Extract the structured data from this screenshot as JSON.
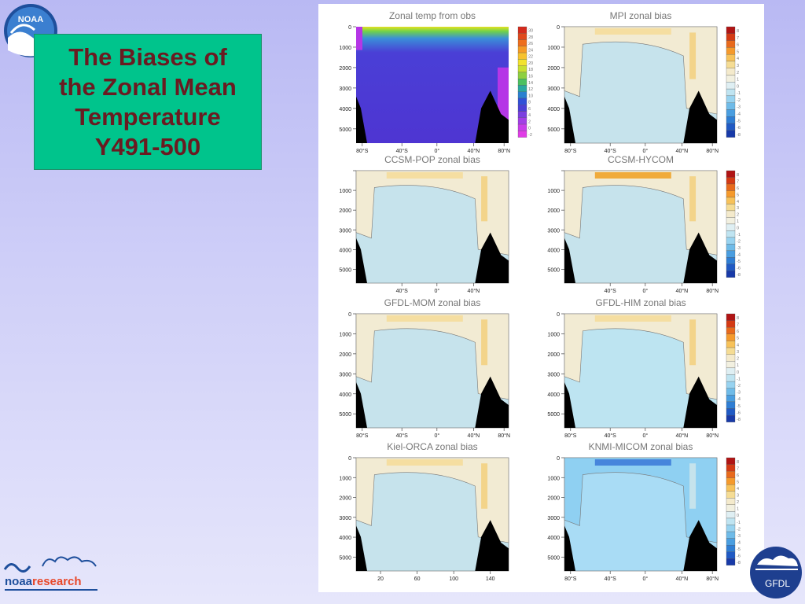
{
  "logos": {
    "noaa_top": "NOAA",
    "noaa_research_1": "noaa",
    "noaa_research_2": "research",
    "gfdl": "GFDL"
  },
  "slide": {
    "title": "The Biases of\nthe Zonal Mean\nTemperature\nY491-500"
  },
  "colors": {
    "title_box": "#00c48c",
    "title_text": "#6a1b21",
    "background": "#c6c6f5"
  },
  "figure": {
    "panels": [
      {
        "title": "Zonal temp from obs",
        "y_ticks": [
          "0",
          "1000",
          "2000",
          "3000",
          "4000",
          "5000"
        ],
        "x_ticks": [
          "80°S",
          "40°S",
          "0°",
          "40°N",
          "80°N"
        ],
        "colorbar": [
          "30",
          "28",
          "26",
          "24",
          "22",
          "20",
          "18",
          "16",
          "14",
          "12",
          "10",
          "8",
          "6",
          "4",
          "2",
          "0",
          "-2"
        ]
      },
      {
        "title": "MPI zonal bias",
        "y_ticks": [
          "0",
          "1000",
          "2000",
          "3000",
          "4000",
          "5000"
        ],
        "x_ticks": [
          "80°S",
          "40°S",
          "0°",
          "40°N",
          "80°N"
        ],
        "colorbar": [
          "8",
          "7",
          "6",
          "5",
          "4",
          "3",
          "2",
          "1",
          "0",
          "-1",
          "-2",
          "-3",
          "-4",
          "-5",
          "-6",
          "-8"
        ]
      },
      {
        "title": "CCSM-POP zonal bias",
        "y_ticks": [
          "",
          "1000",
          "2000",
          "3000",
          "4000",
          "5000"
        ],
        "x_ticks": [
          "40°S",
          "0°",
          "40°N"
        ],
        "colorbar": []
      },
      {
        "title": "CCSM-HYCOM",
        "y_ticks": [
          "",
          "1000",
          "2000",
          "3000",
          "4000",
          "5000"
        ],
        "x_ticks": [
          "40°S",
          "0°",
          "40°N",
          "80°N"
        ],
        "colorbar": [
          "8",
          "7",
          "6",
          "5",
          "4",
          "3",
          "2",
          "1",
          "0",
          "-1",
          "-2",
          "-3",
          "-4",
          "-5",
          "-6",
          "-8"
        ]
      },
      {
        "title": "GFDL-MOM zonal bias",
        "y_ticks": [
          "0",
          "1000",
          "2000",
          "3000",
          "4000",
          "5000"
        ],
        "x_ticks": [
          "80°S",
          "40°S",
          "0°",
          "40°N",
          "80°N"
        ],
        "colorbar": []
      },
      {
        "title": "GFDL-HIM zonal bias",
        "y_ticks": [
          "0",
          "1000",
          "2000",
          "3000",
          "4000",
          "5000"
        ],
        "x_ticks": [
          "80°S",
          "40°S",
          "0°",
          "40°N",
          "80°N"
        ],
        "colorbar": [
          "8",
          "7",
          "6",
          "5",
          "4",
          "3",
          "2",
          "1",
          "0",
          "-1",
          "-2",
          "-3",
          "-4",
          "-5",
          "-6",
          "-8"
        ]
      },
      {
        "title": "Kiel-ORCA zonal bias",
        "y_ticks": [
          "0",
          "1000",
          "2000",
          "3000",
          "4000",
          "5000"
        ],
        "x_ticks": [
          "20",
          "60",
          "100",
          "140"
        ],
        "colorbar": []
      },
      {
        "title": "KNMI-MICOM zonal bias",
        "y_ticks": [
          "0",
          "1000",
          "2000",
          "3000",
          "4000",
          "5000"
        ],
        "x_ticks": [
          "80°S",
          "40°S",
          "0°",
          "40°N",
          "80°N"
        ],
        "colorbar": [
          "8",
          "7",
          "6",
          "5",
          "4",
          "3",
          "2",
          "1",
          "0",
          "-1",
          "-2",
          "-3",
          "-4",
          "-5",
          "-6",
          "-8"
        ]
      }
    ]
  }
}
